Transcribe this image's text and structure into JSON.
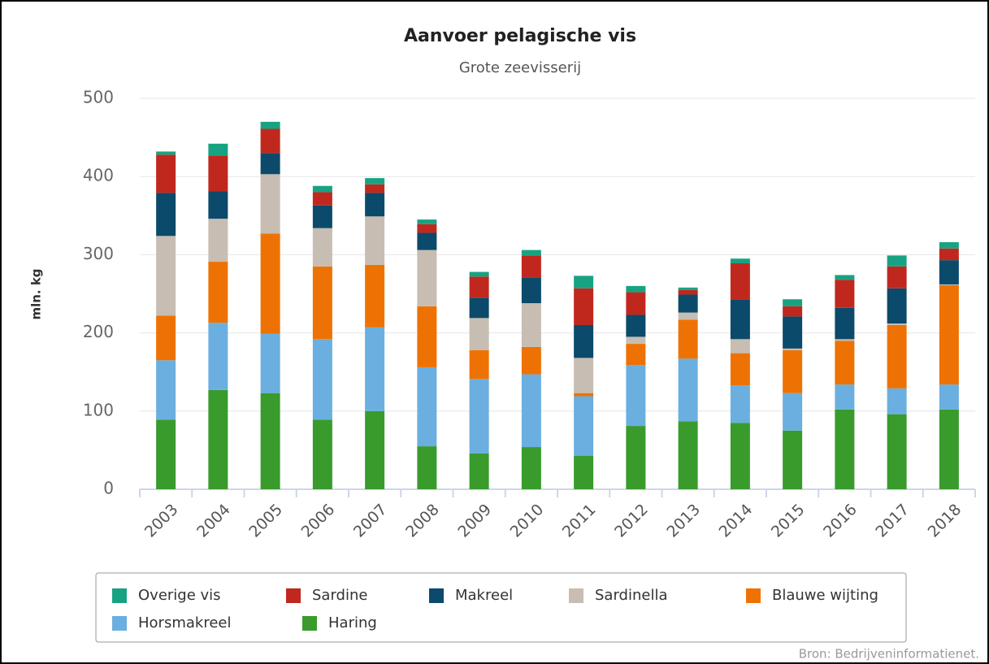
{
  "chart_data": {
    "type": "stacked-bar",
    "title": "Aanvoer pelagische vis",
    "subtitle": "Grote zeevisserij",
    "y_label": "mln. kg",
    "source": "Bron: Bedrijveninformatienet.",
    "categories": [
      "2003",
      "2004",
      "2005",
      "2006",
      "2007",
      "2008",
      "2009",
      "2010",
      "2011",
      "2012",
      "2013",
      "2014",
      "2015",
      "2016",
      "2017",
      "2018"
    ],
    "series": [
      {
        "name": "Overige vis",
        "color": "#17a382",
        "values": [
          4,
          15,
          9,
          8,
          8,
          6,
          6,
          7,
          16,
          8,
          3,
          6,
          9,
          6,
          14,
          8
        ]
      },
      {
        "name": "Sardine",
        "color": "#c0281e",
        "values": [
          49,
          46,
          31,
          17,
          11,
          11,
          27,
          28,
          47,
          29,
          6,
          46,
          13,
          36,
          28,
          15
        ]
      },
      {
        "name": "Makreel",
        "color": "#0b4a6a",
        "values": [
          55,
          35,
          27,
          29,
          30,
          22,
          26,
          33,
          42,
          28,
          23,
          51,
          41,
          40,
          45,
          31
        ]
      },
      {
        "name": "Sardinella",
        "color": "#c7bdb2",
        "values": [
          102,
          55,
          76,
          49,
          62,
          72,
          41,
          56,
          45,
          9,
          9,
          18,
          2,
          2,
          2,
          1
        ]
      },
      {
        "name": "Blauwe wijting",
        "color": "#ee7203",
        "values": [
          57,
          78,
          128,
          93,
          80,
          78,
          37,
          35,
          4,
          27,
          50,
          41,
          55,
          56,
          81,
          127
        ]
      },
      {
        "name": "Horsmakreel",
        "color": "#6aafe0",
        "values": [
          76,
          86,
          76,
          103,
          107,
          101,
          95,
          93,
          76,
          78,
          80,
          48,
          48,
          32,
          33,
          32
        ]
      },
      {
        "name": "Haring",
        "color": "#389b2c",
        "values": [
          89,
          127,
          123,
          89,
          100,
          55,
          46,
          54,
          43,
          81,
          87,
          85,
          75,
          102,
          96,
          102
        ]
      }
    ],
    "ylim": [
      0,
      500
    ],
    "yticks": [
      0,
      100,
      200,
      300,
      400,
      500
    ],
    "grid": true
  }
}
